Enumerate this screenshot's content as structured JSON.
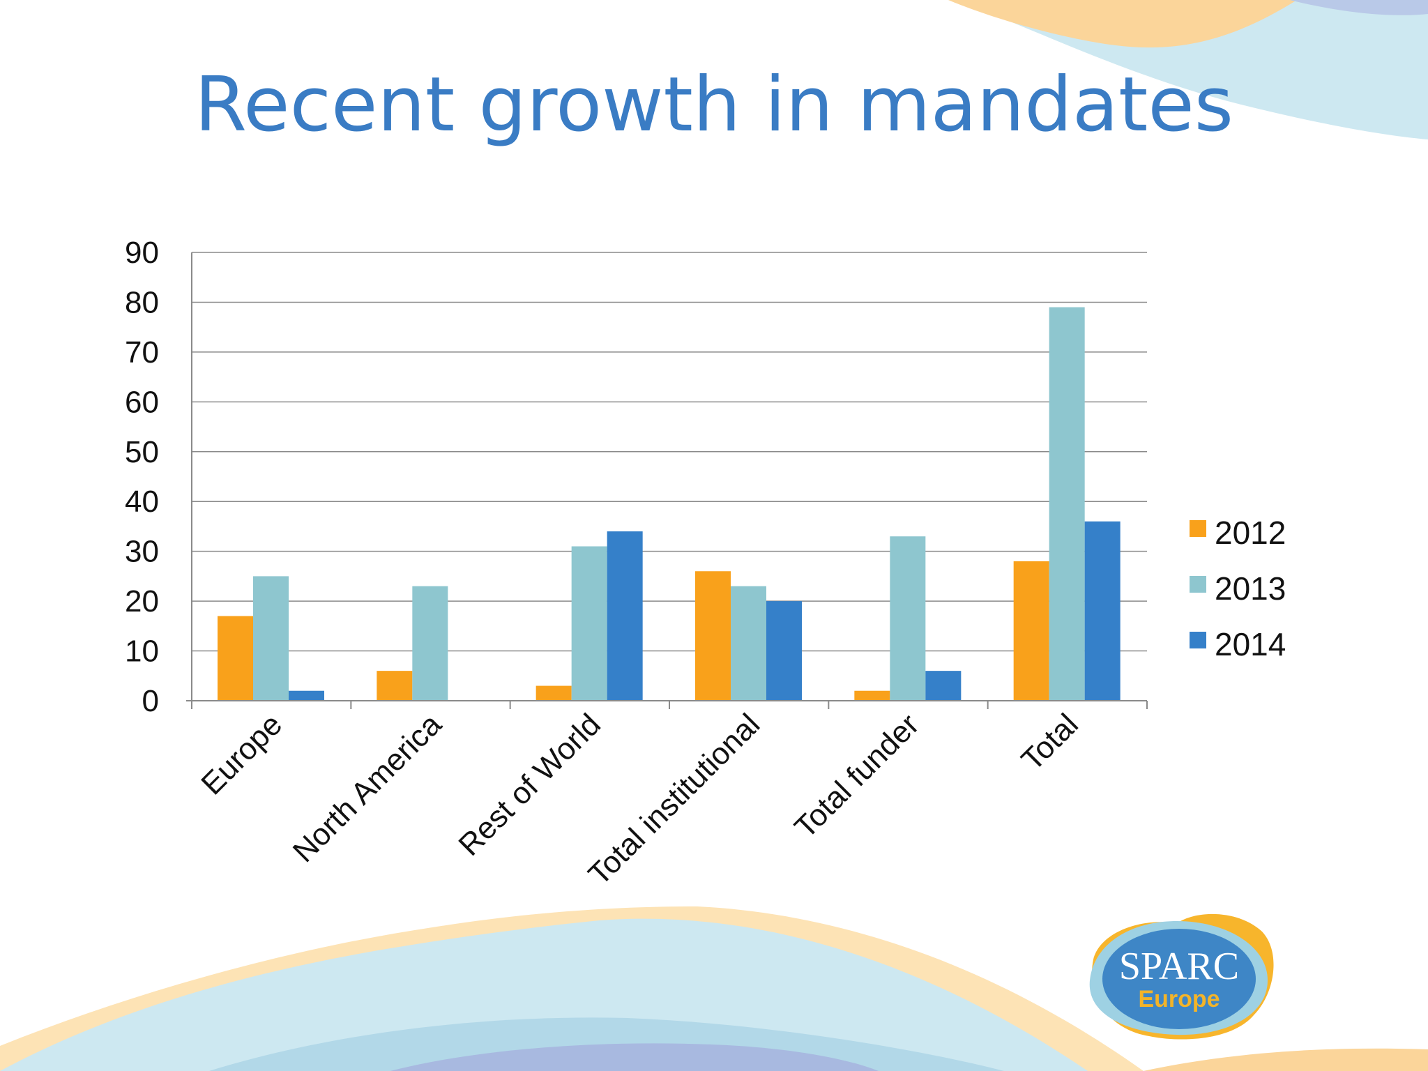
{
  "slide": {
    "title": "Recent growth in mandates",
    "logo": {
      "name": "SPARC",
      "sub": "Europe"
    }
  },
  "colors": {
    "title": "#3A7CC4",
    "s2012": "#F9A11B",
    "s2013": "#8EC6CF",
    "s2014": "#3580C9"
  },
  "chart_data": {
    "type": "bar",
    "title": "",
    "xlabel": "",
    "ylabel": "",
    "ylim": [
      0,
      90
    ],
    "yticks": [
      0,
      10,
      20,
      30,
      40,
      50,
      60,
      70,
      80,
      90
    ],
    "grid": true,
    "legend_position": "right",
    "categories": [
      "Europe",
      "North America",
      "Rest of World",
      "Total institutional",
      "Total funder",
      "Total"
    ],
    "series": [
      {
        "name": "2012",
        "color": "#F9A11B",
        "values": [
          17,
          6,
          3,
          26,
          2,
          28
        ]
      },
      {
        "name": "2013",
        "color": "#8EC6CF",
        "values": [
          25,
          23,
          31,
          23,
          33,
          79
        ]
      },
      {
        "name": "2014",
        "color": "#3580C9",
        "values": [
          2,
          0,
          34,
          20,
          6,
          36
        ]
      }
    ]
  }
}
